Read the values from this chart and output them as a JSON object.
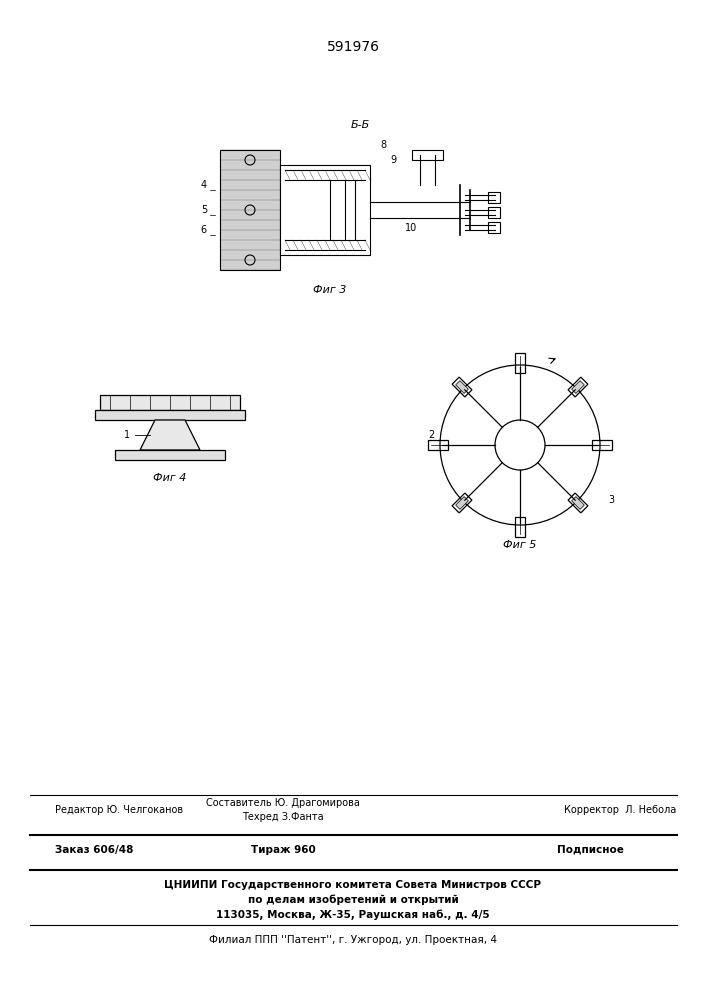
{
  "patent_number": "591976",
  "bg_color": "#f5f5f0",
  "title_fontsize": 10,
  "footer_lines": [
    {
      "left": "Редактор Ю. Челгоканов",
      "center": "Составитель Ю. Драгомирова\nТехред З.Фанта",
      "right": "Корректор  Л. Небола"
    },
    {
      "left": "Заказ 606/48",
      "center": "Тираж 960",
      "right": "Подписное"
    },
    {
      "center": "ЦНИИПИ Государственного комитета Совета Министров СССР"
    },
    {
      "center": "по делам изобретений и открытий"
    },
    {
      "center": "113035, Москва, Ж-35, Раушская наб., д. 4/5"
    },
    {
      "center": "Филиал ППП ''Патент'', г. Ужгород, ул. Проектная, 4"
    }
  ]
}
